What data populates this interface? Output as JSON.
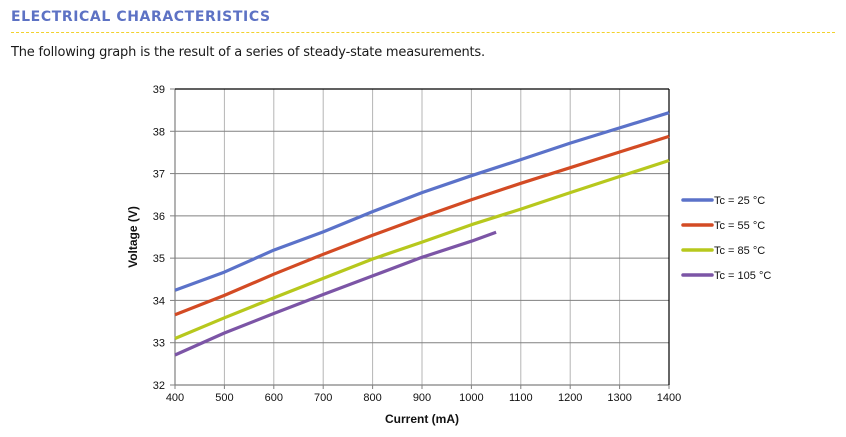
{
  "section": {
    "title": "ELECTRICAL CHARACTERISTICS",
    "intro": "The following graph is the result of a series of steady-state measurements."
  },
  "colors": {
    "heading": "#5D72C4",
    "rule": "#F2D22E",
    "grid": "#B5B5B5",
    "axis": "#808080"
  },
  "chart_data": {
    "type": "line",
    "title": "",
    "xlabel": "Current (mA)",
    "ylabel": "Voltage (V)",
    "xlim": [
      400,
      1400
    ],
    "ylim": [
      32,
      39
    ],
    "xticks": [
      400,
      500,
      600,
      700,
      800,
      900,
      1000,
      1100,
      1200,
      1300,
      1400
    ],
    "yticks": [
      32,
      33,
      34,
      35,
      36,
      37,
      38,
      39
    ],
    "xtick_labels": [
      "400",
      "500",
      "600",
      "700",
      "800",
      "900",
      "1000",
      "1100",
      "1200",
      "1300",
      "1400"
    ],
    "ytick_labels": [
      "32",
      "33",
      "34",
      "35",
      "36",
      "37",
      "38",
      "39"
    ],
    "grid": true,
    "legend_position": "right",
    "series": [
      {
        "name": "Tc = 25 °C",
        "color": "#5B72C9",
        "x": [
          400,
          500,
          600,
          700,
          800,
          900,
          1000,
          1100,
          1200,
          1300,
          1400
        ],
        "y": [
          34.24,
          34.67,
          35.19,
          35.62,
          36.1,
          36.55,
          36.95,
          37.33,
          37.72,
          38.08,
          38.44
        ]
      },
      {
        "name": "Tc = 55 °C",
        "color": "#D34B24",
        "x": [
          400,
          500,
          600,
          700,
          800,
          900,
          1000,
          1100,
          1200,
          1300,
          1400
        ],
        "y": [
          33.66,
          34.12,
          34.62,
          35.09,
          35.54,
          35.97,
          36.38,
          36.77,
          37.14,
          37.51,
          37.88
        ]
      },
      {
        "name": "Tc = 85 °C",
        "color": "#B7C81D",
        "x": [
          400,
          500,
          600,
          700,
          800,
          900,
          1000,
          1100,
          1200,
          1300,
          1400
        ],
        "y": [
          33.1,
          33.59,
          34.06,
          34.52,
          34.98,
          35.38,
          35.79,
          36.16,
          36.55,
          36.93,
          37.31
        ]
      },
      {
        "name": "Tc = 105 °C",
        "color": "#7C55A6",
        "x": [
          400,
          500,
          600,
          700,
          800,
          900,
          1000,
          1050
        ],
        "y": [
          32.71,
          33.23,
          33.69,
          34.14,
          34.58,
          35.02,
          35.4,
          35.61
        ]
      }
    ]
  }
}
